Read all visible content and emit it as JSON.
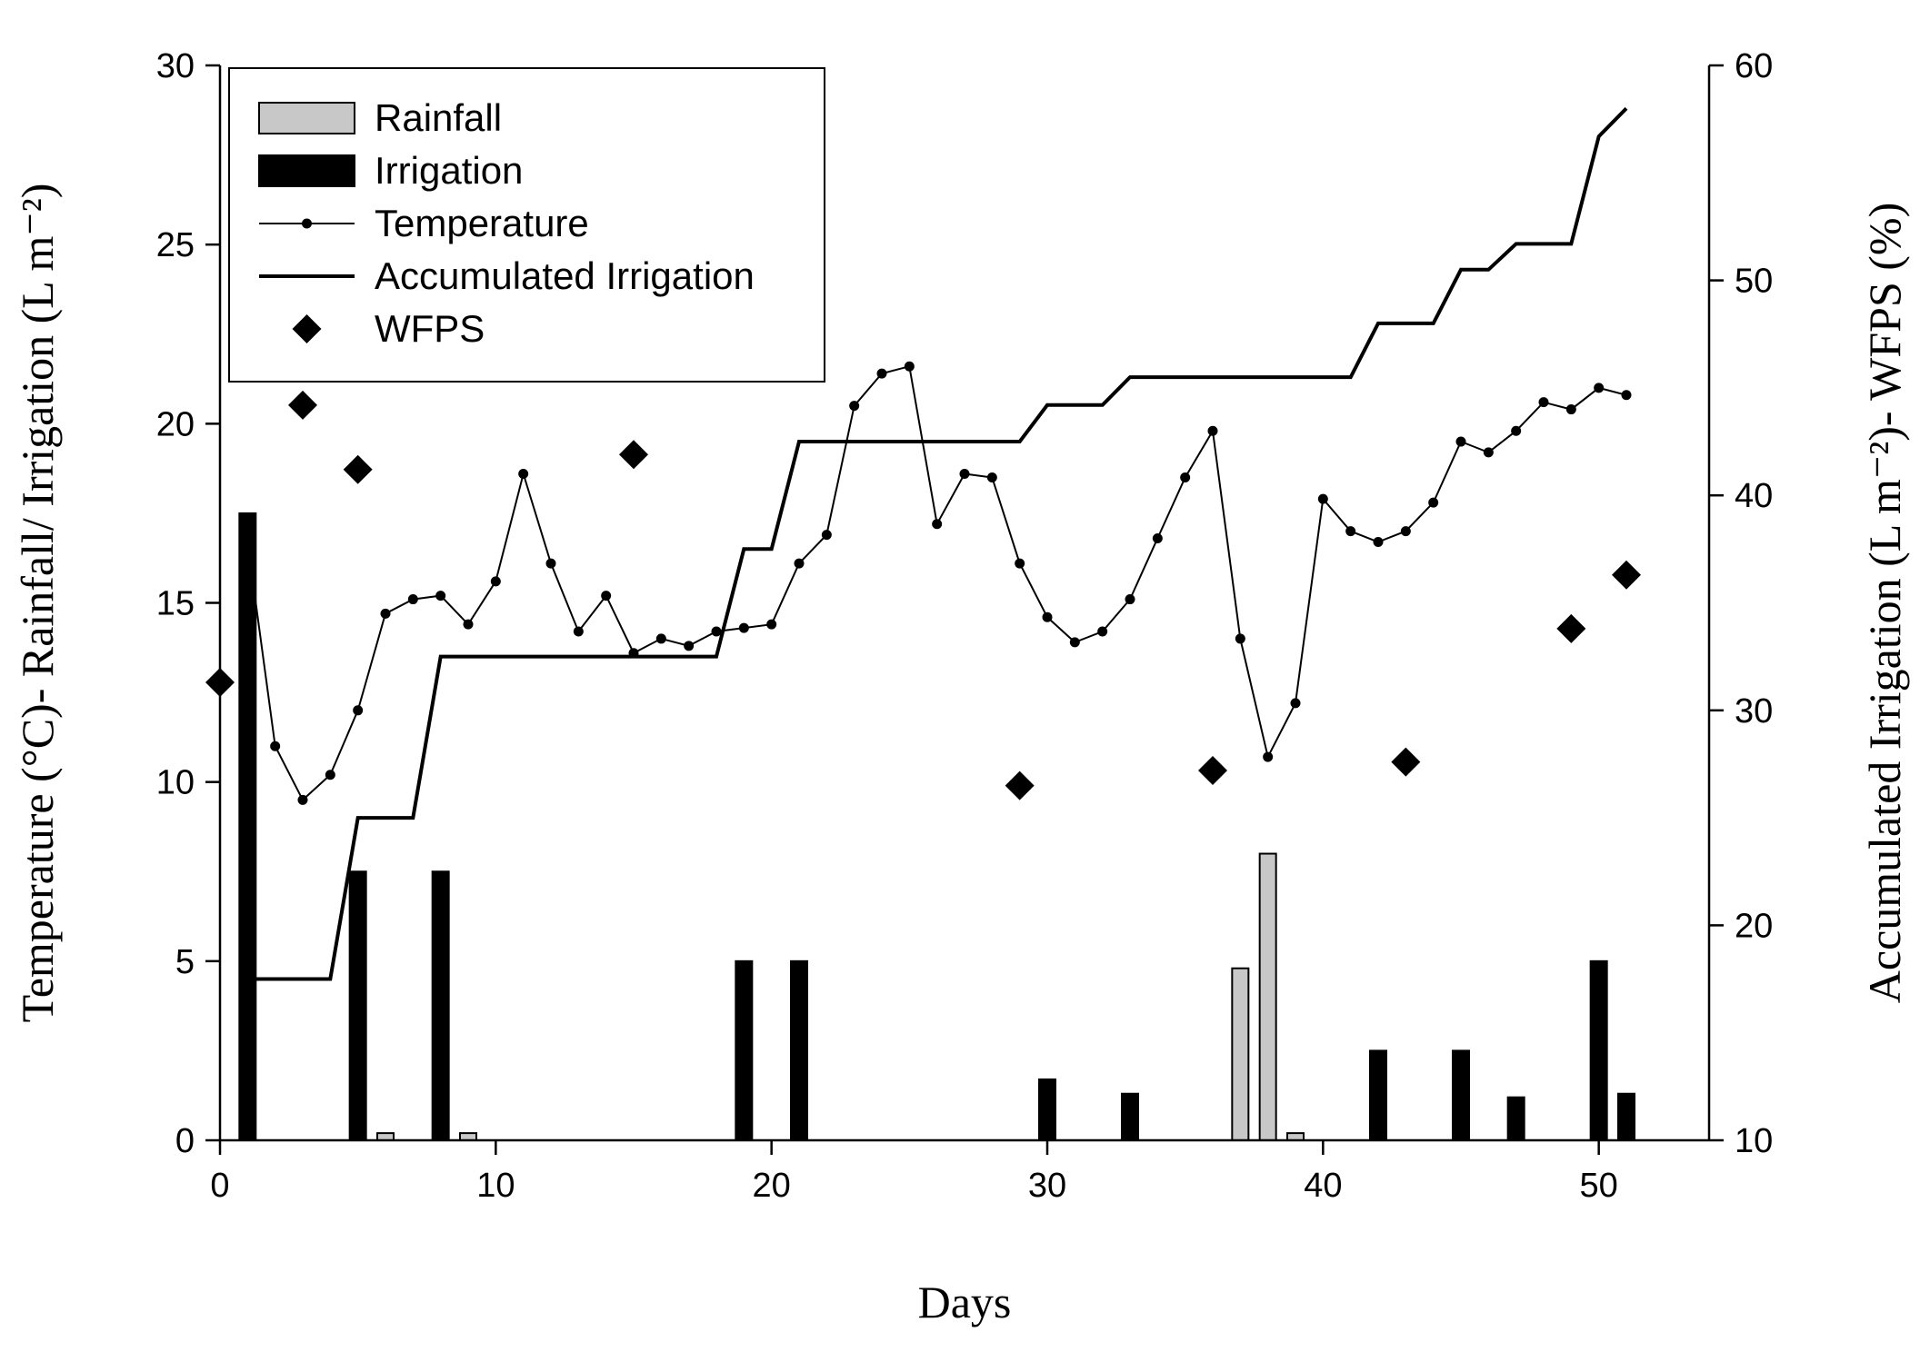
{
  "chart_data": {
    "type": "combo",
    "xlabel": "Days",
    "ylabel_left": "Temperature (°C)- Rainfall/ Irrigation (L m⁻²)",
    "ylabel_right": "Accumulated Irrigation (L m⁻²)- WFPS (%)",
    "x_range": [
      0,
      54
    ],
    "x_ticks": [
      0,
      10,
      20,
      30,
      40,
      50
    ],
    "y_left_range": [
      0,
      30
    ],
    "y_left_ticks": [
      0,
      5,
      10,
      15,
      20,
      25,
      30
    ],
    "y_right_range": [
      10,
      60
    ],
    "y_right_ticks": [
      10,
      20,
      30,
      40,
      50,
      60
    ],
    "legend": {
      "position": "top-left",
      "entries": [
        "Rainfall",
        "Irrigation",
        "Temperature",
        "Accumulated Irrigation",
        "WFPS"
      ]
    },
    "colors": {
      "rainfall": "#c8c8c8",
      "irrigation": "#000000",
      "temperature": "#000000",
      "accumulated": "#000000",
      "wfps": "#000000"
    },
    "series": [
      {
        "name": "Rainfall",
        "kind": "bar",
        "axis": "left",
        "points": [
          [
            6,
            0.2
          ],
          [
            9,
            0.2
          ],
          [
            37,
            4.8
          ],
          [
            38,
            8.0
          ],
          [
            39,
            0.2
          ]
        ]
      },
      {
        "name": "Irrigation",
        "kind": "bar",
        "axis": "left",
        "points": [
          [
            1,
            17.5
          ],
          [
            5,
            7.5
          ],
          [
            8,
            7.5
          ],
          [
            19,
            5.0
          ],
          [
            21,
            5.0
          ],
          [
            30,
            1.7
          ],
          [
            33,
            1.3
          ],
          [
            42,
            2.5
          ],
          [
            45,
            2.5
          ],
          [
            47,
            1.2
          ],
          [
            50,
            5.0
          ],
          [
            51,
            1.3
          ]
        ]
      },
      {
        "name": "Temperature",
        "kind": "line-marker",
        "axis": "left",
        "points": [
          [
            1,
            16.7
          ],
          [
            2,
            11.0
          ],
          [
            3,
            9.5
          ],
          [
            4,
            10.2
          ],
          [
            5,
            12.0
          ],
          [
            6,
            14.7
          ],
          [
            7,
            15.1
          ],
          [
            8,
            15.2
          ],
          [
            9,
            14.4
          ],
          [
            10,
            15.6
          ],
          [
            11,
            18.6
          ],
          [
            12,
            16.1
          ],
          [
            13,
            14.2
          ],
          [
            14,
            15.2
          ],
          [
            15,
            13.6
          ],
          [
            16,
            14.0
          ],
          [
            17,
            13.8
          ],
          [
            18,
            14.2
          ],
          [
            19,
            14.3
          ],
          [
            20,
            14.4
          ],
          [
            21,
            16.1
          ],
          [
            22,
            16.9
          ],
          [
            23,
            20.5
          ],
          [
            24,
            21.4
          ],
          [
            25,
            21.6
          ],
          [
            26,
            17.2
          ],
          [
            27,
            18.6
          ],
          [
            28,
            18.5
          ],
          [
            29,
            16.1
          ],
          [
            30,
            14.6
          ],
          [
            31,
            13.9
          ],
          [
            32,
            14.2
          ],
          [
            33,
            15.1
          ],
          [
            34,
            16.8
          ],
          [
            35,
            18.5
          ],
          [
            36,
            19.8
          ],
          [
            37,
            14.0
          ],
          [
            38,
            10.7
          ],
          [
            39,
            12.2
          ],
          [
            40,
            17.9
          ],
          [
            41,
            17.0
          ],
          [
            42,
            16.7
          ],
          [
            43,
            17.0
          ],
          [
            44,
            17.8
          ],
          [
            45,
            19.5
          ],
          [
            46,
            19.2
          ],
          [
            47,
            19.8
          ],
          [
            48,
            20.6
          ],
          [
            49,
            20.4
          ],
          [
            50,
            21.0
          ],
          [
            51,
            20.8
          ]
        ]
      },
      {
        "name": "Accumulated Irrigation",
        "kind": "line",
        "axis": "right",
        "points": [
          [
            1,
            17.5
          ],
          [
            4,
            17.5
          ],
          [
            5,
            25.0
          ],
          [
            7,
            25.0
          ],
          [
            8,
            32.5
          ],
          [
            18,
            32.5
          ],
          [
            19,
            37.5
          ],
          [
            20,
            37.5
          ],
          [
            21,
            42.5
          ],
          [
            29,
            42.5
          ],
          [
            30,
            44.2
          ],
          [
            32,
            44.2
          ],
          [
            33,
            45.5
          ],
          [
            41,
            45.5
          ],
          [
            42,
            48.0
          ],
          [
            44,
            48.0
          ],
          [
            45,
            50.5
          ],
          [
            46,
            50.5
          ],
          [
            47,
            51.7
          ],
          [
            49,
            51.7
          ],
          [
            50,
            56.7
          ],
          [
            51,
            58.0
          ]
        ]
      },
      {
        "name": "WFPS",
        "kind": "scatter",
        "axis": "right",
        "points": [
          [
            0,
            31.3
          ],
          [
            3,
            44.2
          ],
          [
            5,
            41.2
          ],
          [
            15,
            41.9
          ],
          [
            29,
            26.5
          ],
          [
            36,
            27.2
          ],
          [
            43,
            27.6
          ],
          [
            49,
            33.8
          ],
          [
            51,
            36.3
          ]
        ]
      }
    ]
  }
}
